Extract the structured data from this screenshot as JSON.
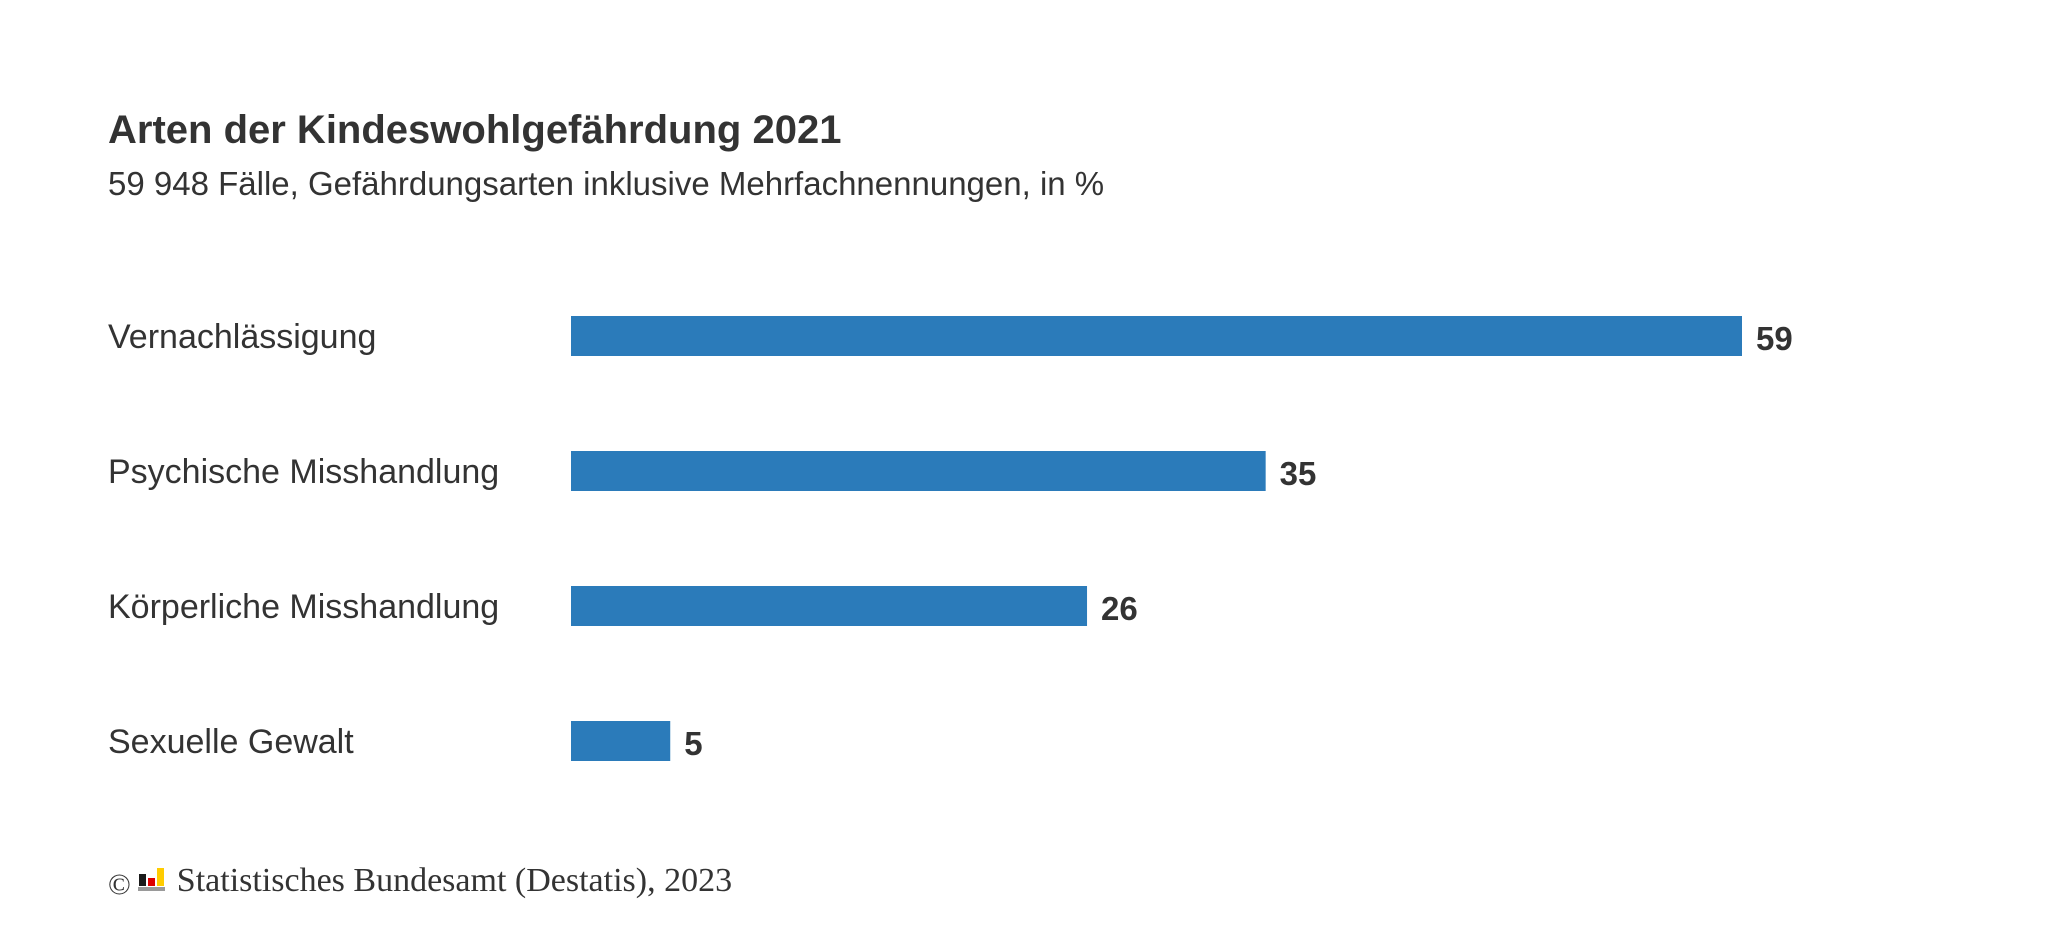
{
  "chart_data": {
    "type": "bar",
    "orientation": "horizontal",
    "title": "Arten der Kindeswohlgefährdung 2021",
    "subtitle": "59 948 Fälle, Gefährdungsarten inklusive Mehrfachnennungen, in %",
    "categories": [
      "Vernachlässigung",
      "Psychische Misshandlung",
      "Körperliche Misshandlung",
      "Sexuelle Gewalt"
    ],
    "values": [
      59,
      35,
      26,
      5
    ],
    "xlim": [
      0,
      59
    ],
    "grid": false,
    "bar_color": "#2b7bba"
  },
  "source": {
    "copyright_symbol": "©",
    "text": "Statistisches Bundesamt (Destatis), 2023"
  },
  "colors": {
    "text": "#333333",
    "logo_black": "#1a1a1a",
    "logo_red": "#dd0000",
    "logo_gold": "#ffcc00",
    "logo_gray": "#9a9a9a"
  }
}
